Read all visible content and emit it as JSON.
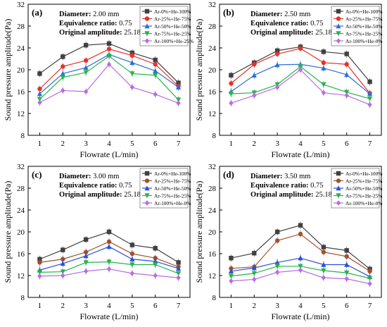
{
  "figure": {
    "ylabel": "Sound pressure amplitude(Pa)",
    "xlabel": "Flowrate (L/min)",
    "info_labels": {
      "diameter": "Diameter",
      "ratio": "Equivalence ratio",
      "amplitude": "Original amplitude"
    },
    "marker_shapes": [
      "square",
      "circle",
      "triangle-up",
      "triangle-down",
      "diamond"
    ]
  },
  "chart_data": [
    {
      "type": "line",
      "panel_label": "(a)",
      "diameter": "2.00 mm",
      "equivalence_ratio": "0.75",
      "original_amplitude": "25.18 Pa",
      "x": [
        1,
        2,
        3,
        4,
        5,
        6,
        7
      ],
      "xlim": [
        0.5,
        7.5
      ],
      "ylim": [
        8,
        32
      ],
      "yticks": [
        8,
        12,
        16,
        20,
        24,
        28,
        32
      ],
      "xlabel": "Flowrate (L/min)",
      "ylabel": "Sound pressure amplitude(Pa)",
      "legend": "top-right",
      "grid": false,
      "series": [
        {
          "name": "Ar-0%+He-100%",
          "color": "#404040",
          "values": [
            19.3,
            22.4,
            24.5,
            24.8,
            23.1,
            21.8,
            17.6
          ]
        },
        {
          "name": "Ar-25%+He-75%",
          "color": "#e8312a",
          "values": [
            16.5,
            20.6,
            21.7,
            23.8,
            22.6,
            21.0,
            17.0
          ]
        },
        {
          "name": "Ar-50%+He-50%",
          "color": "#2a6fd6",
          "values": [
            15.6,
            19.3,
            20.4,
            22.8,
            21.3,
            19.8,
            16.8
          ]
        },
        {
          "name": "Ar-75%+He-25%",
          "color": "#25b34a",
          "values": [
            14.6,
            18.6,
            19.5,
            22.5,
            19.3,
            19.0,
            14.5
          ]
        },
        {
          "name": "Ar-100%+He-25%",
          "color": "#b66de0",
          "values": [
            14.0,
            16.2,
            16.0,
            21.0,
            16.8,
            15.5,
            13.9
          ]
        }
      ]
    },
    {
      "type": "line",
      "panel_label": "(b)",
      "diameter": "2.50 mm",
      "equivalence_ratio": "0.75",
      "original_amplitude": "25.18 Pa",
      "x": [
        1,
        2,
        3,
        4,
        5,
        6,
        7
      ],
      "xlim": [
        0.5,
        7.5
      ],
      "ylim": [
        8,
        32
      ],
      "yticks": [
        8,
        12,
        16,
        20,
        24,
        28,
        32
      ],
      "xlabel": "Flowrate (L/min)",
      "ylabel": "Sound pressure amplitude(Pa)",
      "legend": "top-right",
      "grid": false,
      "series": [
        {
          "name": "Ar-0%+He-100%",
          "color": "#404040",
          "values": [
            19.0,
            21.3,
            23.5,
            24.2,
            23.3,
            22.9,
            17.8
          ]
        },
        {
          "name": "Ar-25%+He-75%",
          "color": "#e8312a",
          "values": [
            17.5,
            21.0,
            22.9,
            23.9,
            21.3,
            21.0,
            15.7
          ]
        },
        {
          "name": "Ar-50%+He-50%",
          "color": "#2a6fd6",
          "values": [
            16.0,
            19.0,
            20.9,
            21.0,
            20.3,
            19.1,
            15.6
          ]
        },
        {
          "name": "Ar-75%+He-25%",
          "color": "#25b34a",
          "values": [
            15.6,
            15.8,
            17.3,
            20.6,
            17.3,
            15.9,
            14.7
          ]
        },
        {
          "name": "Ar-100%+He-0%",
          "color": "#b66de0",
          "values": [
            13.9,
            15.3,
            16.8,
            20.0,
            15.8,
            15.3,
            13.6
          ]
        }
      ]
    },
    {
      "type": "line",
      "panel_label": "(c)",
      "diameter": "3.00 mm",
      "equivalence_ratio": "0.75",
      "original_amplitude": "25.18 Pa",
      "x": [
        1,
        2,
        3,
        4,
        5,
        6,
        7
      ],
      "xlim": [
        0.5,
        7.5
      ],
      "ylim": [
        8,
        32
      ],
      "yticks": [
        8,
        12,
        16,
        20,
        24,
        28,
        32
      ],
      "xlabel": "Flowrate (L/min)",
      "ylabel": "Sound pressure amplitude(Pa)",
      "legend": "top-right",
      "grid": false,
      "series": [
        {
          "name": "Ar-0%+He-100%",
          "color": "#404040",
          "values": [
            15.0,
            16.7,
            18.6,
            20.0,
            17.6,
            17.0,
            14.4
          ]
        },
        {
          "name": "Ar-25%+He-75%",
          "color": "#a0522d",
          "values": [
            14.4,
            15.0,
            16.3,
            18.2,
            16.0,
            15.2,
            13.6
          ]
        },
        {
          "name": "Ar-50%+He-50%",
          "color": "#2a4fd6",
          "values": [
            13.0,
            14.2,
            15.6,
            17.3,
            15.0,
            14.6,
            13.3
          ]
        },
        {
          "name": "Ar-75%+He-25%",
          "color": "#25b34a",
          "values": [
            12.6,
            12.7,
            14.4,
            14.5,
            14.0,
            14.0,
            12.4
          ]
        },
        {
          "name": "Ar-100%+He-0%",
          "color": "#b66de0",
          "values": [
            11.9,
            12.0,
            12.8,
            13.2,
            12.4,
            12.0,
            11.6
          ]
        }
      ]
    },
    {
      "type": "line",
      "panel_label": "(d)",
      "diameter": "3.50 mm",
      "equivalence_ratio": "0.75",
      "original_amplitude": "25.18 Pa",
      "x": [
        1,
        2,
        3,
        4,
        5,
        6,
        7
      ],
      "xlim": [
        0.5,
        7.5
      ],
      "ylim": [
        8,
        32
      ],
      "yticks": [
        8,
        12,
        16,
        20,
        24,
        28,
        32
      ],
      "xlabel": "Flowrate (L/min)",
      "ylabel": "Sound pressure amplitude(Pa)",
      "legend": "top-right",
      "grid": false,
      "series": [
        {
          "name": "Ar-0%+He-100%",
          "color": "#404040",
          "values": [
            15.2,
            16.1,
            20.0,
            21.2,
            17.2,
            16.6,
            13.2
          ]
        },
        {
          "name": "Ar-25%+He-75%",
          "color": "#a0522d",
          "values": [
            13.3,
            13.6,
            18.4,
            19.6,
            16.3,
            15.5,
            12.8
          ]
        },
        {
          "name": "Ar-50%+He-50%",
          "color": "#2a4fd6",
          "values": [
            12.8,
            13.4,
            14.4,
            15.2,
            14.0,
            14.0,
            11.8
          ]
        },
        {
          "name": "Ar-75%+He-25%",
          "color": "#25b34a",
          "values": [
            11.9,
            12.4,
            13.7,
            13.7,
            12.9,
            12.5,
            11.5
          ]
        },
        {
          "name": "Ar-100%+He-0%",
          "color": "#b66de0",
          "values": [
            11.0,
            11.3,
            12.6,
            13.0,
            11.6,
            11.4,
            10.5
          ]
        }
      ]
    }
  ]
}
